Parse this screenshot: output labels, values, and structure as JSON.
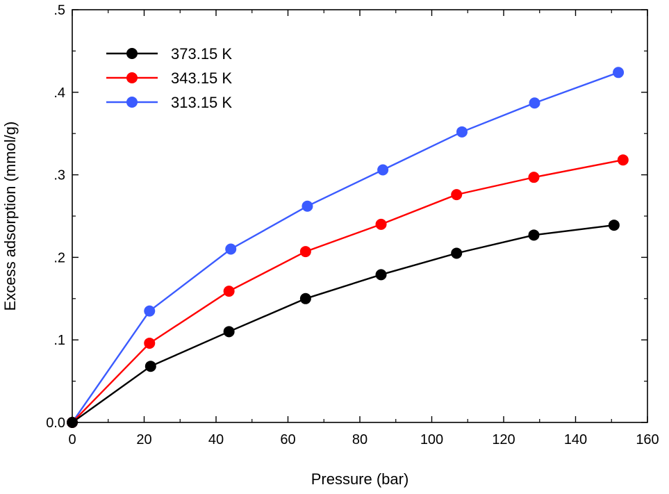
{
  "chart_data": {
    "type": "line",
    "title": "",
    "xlabel": "Pressure (bar)",
    "ylabel": "Excess adsorption (mmol/g)",
    "xlim": [
      0,
      160
    ],
    "ylim": [
      0,
      0.5
    ],
    "x_ticks": [
      0,
      20,
      40,
      60,
      80,
      100,
      120,
      140,
      160
    ],
    "x_tick_labels": [
      "0",
      "20",
      "40",
      "60",
      "80",
      "100",
      "120",
      "140",
      "160"
    ],
    "y_ticks": [
      0,
      0.1,
      0.2,
      0.3,
      0.4,
      0.5
    ],
    "y_tick_labels": [
      "0.0",
      ".1",
      ".2",
      ".3",
      ".4",
      ".5"
    ],
    "grid": false,
    "legend_position": "top-left",
    "series": [
      {
        "name": "373.15 K",
        "color": "#000000",
        "x": [
          0,
          21.8,
          43.6,
          64.9,
          85.9,
          106.9,
          128.4,
          150.7
        ],
        "y": [
          0,
          0.068,
          0.11,
          0.15,
          0.179,
          0.205,
          0.227,
          0.239
        ]
      },
      {
        "name": "343.15 K",
        "color": "#ff0000",
        "x": [
          0,
          21.5,
          43.6,
          64.9,
          85.9,
          106.9,
          128.4,
          153.2
        ],
        "y": [
          0,
          0.096,
          0.159,
          0.207,
          0.24,
          0.276,
          0.297,
          0.318
        ]
      },
      {
        "name": "313.15 K",
        "color": "#3b5bff",
        "x": [
          0,
          21.5,
          44.1,
          65.4,
          86.4,
          108.4,
          128.6,
          151.9
        ],
        "y": [
          0,
          0.135,
          0.21,
          0.262,
          0.306,
          0.352,
          0.387,
          0.424
        ]
      }
    ]
  }
}
